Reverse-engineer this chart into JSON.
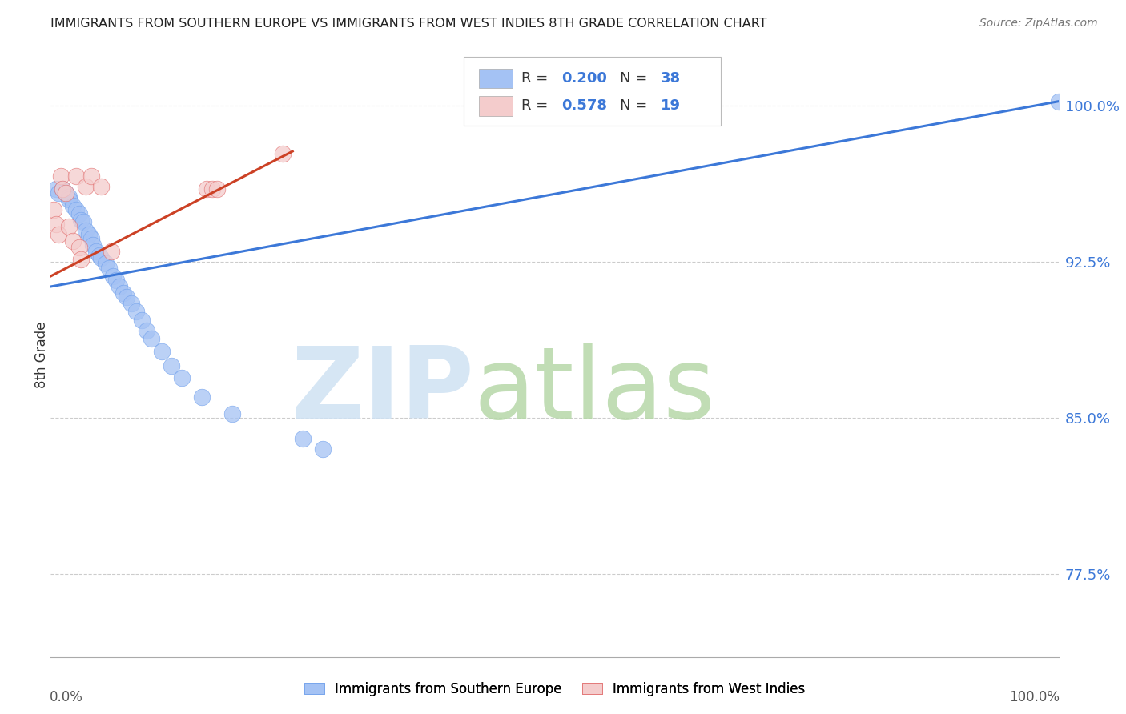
{
  "title": "IMMIGRANTS FROM SOUTHERN EUROPE VS IMMIGRANTS FROM WEST INDIES 8TH GRADE CORRELATION CHART",
  "source": "Source: ZipAtlas.com",
  "ylabel": "8th Grade",
  "y_ticks": [
    0.775,
    0.85,
    0.925,
    1.0
  ],
  "y_tick_labels": [
    "77.5%",
    "85.0%",
    "92.5%",
    "100.0%"
  ],
  "xlim": [
    0.0,
    1.0
  ],
  "ylim": [
    0.735,
    1.025
  ],
  "legend_r1": "0.200",
  "legend_n1": "38",
  "legend_r2": "0.578",
  "legend_n2": "19",
  "blue_color": "#a4c2f4",
  "pink_color": "#f4cccc",
  "blue_edge": "#6d9eeb",
  "pink_edge": "#e06666",
  "trend_blue": "#3c78d8",
  "trend_pink": "#cc4125",
  "label_blue": "Immigrants from Southern Europe",
  "label_pink": "Immigrants from West Indies",
  "watermark_zip": "ZIP",
  "watermark_atlas": "atlas",
  "watermark_color_zip": "#c9daf8",
  "watermark_color_atlas": "#b6d7a8",
  "blue_x": [
    0.005,
    0.008,
    0.012,
    0.015,
    0.018,
    0.018,
    0.022,
    0.025,
    0.028,
    0.03,
    0.032,
    0.035,
    0.038,
    0.04,
    0.042,
    0.045,
    0.048,
    0.05,
    0.055,
    0.058,
    0.062,
    0.065,
    0.068,
    0.072,
    0.075,
    0.08,
    0.085,
    0.09,
    0.095,
    0.1,
    0.11,
    0.12,
    0.13,
    0.15,
    0.18,
    0.25,
    0.27,
    1.0
  ],
  "blue_y": [
    0.96,
    0.958,
    0.96,
    0.958,
    0.956,
    0.955,
    0.952,
    0.95,
    0.948,
    0.945,
    0.944,
    0.94,
    0.938,
    0.936,
    0.933,
    0.93,
    0.928,
    0.927,
    0.924,
    0.922,
    0.918,
    0.916,
    0.913,
    0.91,
    0.908,
    0.905,
    0.901,
    0.897,
    0.892,
    0.888,
    0.882,
    0.875,
    0.869,
    0.86,
    0.852,
    0.84,
    0.835,
    1.002
  ],
  "pink_x": [
    0.003,
    0.005,
    0.008,
    0.01,
    0.012,
    0.015,
    0.018,
    0.022,
    0.025,
    0.028,
    0.03,
    0.035,
    0.04,
    0.05,
    0.06,
    0.155,
    0.16,
    0.165,
    0.23
  ],
  "pink_y": [
    0.95,
    0.943,
    0.938,
    0.966,
    0.96,
    0.958,
    0.942,
    0.935,
    0.966,
    0.932,
    0.926,
    0.961,
    0.966,
    0.961,
    0.93,
    0.96,
    0.96,
    0.96,
    0.977
  ],
  "blue_trend_x": [
    0.0,
    1.0
  ],
  "blue_trend_y": [
    0.913,
    1.002
  ],
  "pink_trend_x": [
    0.0,
    0.24
  ],
  "pink_trend_y": [
    0.918,
    0.978
  ]
}
